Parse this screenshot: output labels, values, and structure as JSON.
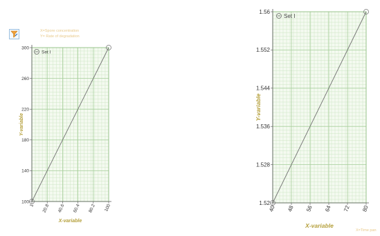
{
  "toolbar": {
    "tool_icon": "filter-pencil-icon"
  },
  "annotations": {
    "left_line1": "X=Spore concentration",
    "left_line2": "Y= Rate of  degradation",
    "right_note": "X=Time pan"
  },
  "colors": {
    "grid_major": "#a8cf9c",
    "grid_minor": "#cfe6c6",
    "plot_bg": "#f4faf0",
    "line": "#707070",
    "axis_label": "#b5a03c"
  },
  "chart_data": [
    {
      "type": "line",
      "xlabel": "X-variable",
      "ylabel": "Y-variable",
      "xlim": [
        1,
        100
      ],
      "ylim": [
        100,
        300
      ],
      "x_ticks": [
        1,
        20.8,
        40.6,
        60.4,
        80.2,
        100
      ],
      "x_tick_labels": [
        "1",
        "20.8",
        "40.6",
        "60.4",
        "80.2",
        "100"
      ],
      "y_ticks": [
        100,
        140,
        180,
        220,
        260,
        300
      ],
      "y_tick_labels": [
        "100",
        "140",
        "180",
        "220",
        "260",
        "300"
      ],
      "legend": "top-left",
      "grid": true,
      "series": [
        {
          "name": "Set I",
          "x": [
            1,
            100
          ],
          "y": [
            100,
            300
          ]
        }
      ]
    },
    {
      "type": "line",
      "xlabel": "X-variable",
      "ylabel": "Y-variable",
      "xlim": [
        40,
        80
      ],
      "ylim": [
        1.52,
        1.56
      ],
      "x_ticks": [
        40,
        48,
        56,
        64,
        72,
        80
      ],
      "x_tick_labels": [
        "40",
        "48",
        "56",
        "64",
        "72",
        "80"
      ],
      "y_ticks": [
        1.52,
        1.528,
        1.536,
        1.544,
        1.552,
        1.56
      ],
      "y_tick_labels": [
        "1.52",
        "1.528",
        "1.536",
        "1.544",
        "1.552",
        "1.56"
      ],
      "legend": "top-left",
      "grid": true,
      "series": [
        {
          "name": "Set I",
          "x": [
            40,
            80
          ],
          "y": [
            1.52,
            1.56
          ]
        }
      ]
    }
  ]
}
